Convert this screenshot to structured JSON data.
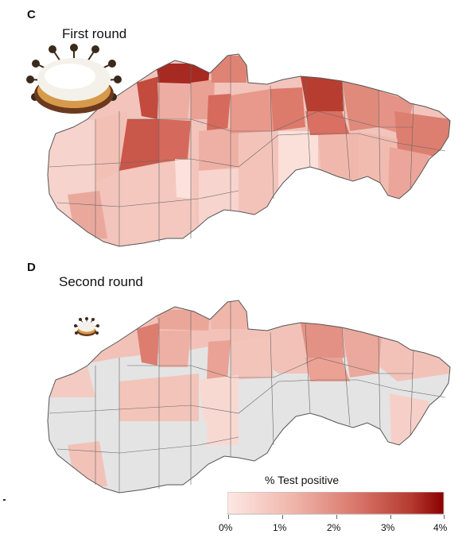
{
  "panels": [
    {
      "letter": "C",
      "title": "First round"
    },
    {
      "letter": "D",
      "title": "Second round"
    }
  ],
  "legend": {
    "title": "% Test positive",
    "ticks": [
      "0%",
      "1%",
      "2%",
      "3%",
      "4%"
    ],
    "color_low": "#fde8e4",
    "color_high": "#8a0000"
  },
  "colors": {
    "not_tested": "#e4e4e4",
    "border": "#555555"
  }
}
